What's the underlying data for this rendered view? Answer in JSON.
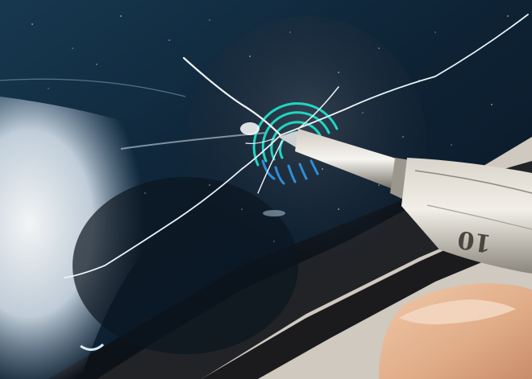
{
  "photo": {
    "subject": "phone-screen-scratch-test",
    "pick_marking": "10"
  },
  "colors": {
    "screen_dark": "#0b1a2a",
    "screen_blue": "#1c3f5e",
    "glare": "#e9f3fb",
    "fingerprint_teal": "#1fd6c2",
    "fingerprint_blue": "#2e7fd8",
    "scratch": "#eef3f7",
    "metal_light": "#e6e2d8",
    "metal_mid": "#b9b4a8",
    "metal_dark": "#7b776d",
    "skin": "#e7b998",
    "frame": "#1a1a1c",
    "table": "#d9d4cc"
  }
}
